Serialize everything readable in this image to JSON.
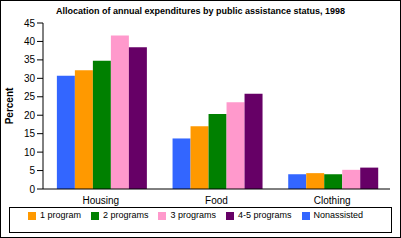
{
  "chart_data": {
    "type": "bar",
    "title": "Allocation of annual expenditures by public assistance status, 1998",
    "y_label": "Percent",
    "categories": [
      "Housing",
      "Food",
      "Clothing"
    ],
    "series": [
      {
        "name": "Nonassisted",
        "color": "#3366ff",
        "values": [
          30.7,
          13.7,
          4.0
        ]
      },
      {
        "name": "1 program",
        "color": "#ff9900",
        "values": [
          32.2,
          17.0,
          4.3
        ]
      },
      {
        "name": "2 programs",
        "color": "#008000",
        "values": [
          34.8,
          20.3,
          4.0
        ]
      },
      {
        "name": "3 programs",
        "color": "#ff99cc",
        "values": [
          41.6,
          23.5,
          5.2
        ]
      },
      {
        "name": "4-5 programs",
        "color": "#660066",
        "values": [
          38.4,
          25.8,
          5.8
        ]
      }
    ],
    "ylim": [
      0,
      45
    ],
    "yticks": [
      0,
      5,
      10,
      15,
      20,
      25,
      30,
      35,
      40,
      45
    ],
    "grid": false,
    "legend": "bottom"
  }
}
